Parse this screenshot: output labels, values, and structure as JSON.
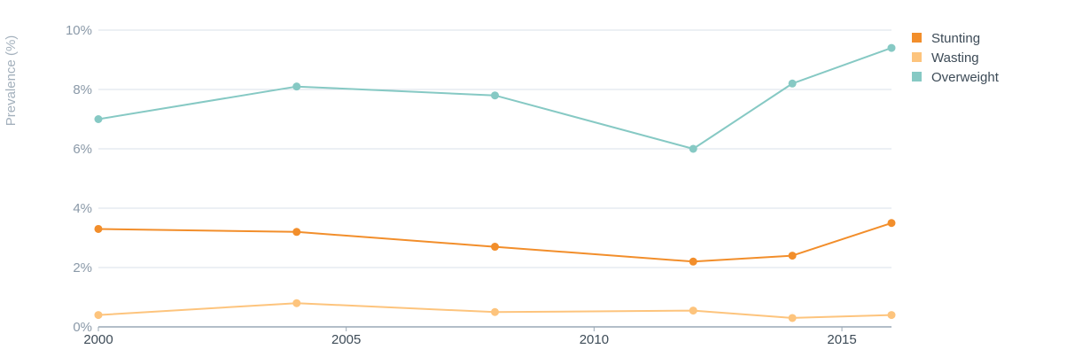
{
  "chart_data": {
    "type": "line",
    "ylabel": "Prevalence (%)",
    "xlabel": "",
    "xlim": [
      2000,
      2016
    ],
    "ylim": [
      0,
      10
    ],
    "x_ticks": [
      2000,
      2005,
      2010,
      2015
    ],
    "x_tick_labels": [
      "2000",
      "2005",
      "2010",
      "2015"
    ],
    "y_ticks": [
      0,
      2,
      4,
      6,
      8,
      10
    ],
    "y_tick_labels": [
      "0%",
      "2%",
      "4%",
      "6%",
      "8%",
      "10%"
    ],
    "grid": true,
    "legend_position": "top-right",
    "x": [
      2000,
      2004,
      2008,
      2012,
      2014,
      2016
    ],
    "series": [
      {
        "name": "Stunting",
        "color": "#f28e2b",
        "values": [
          3.3,
          3.2,
          2.7,
          2.2,
          2.4,
          3.5
        ]
      },
      {
        "name": "Wasting",
        "color": "#fdc47d",
        "values": [
          0.4,
          0.8,
          0.5,
          0.55,
          0.3,
          0.4
        ]
      },
      {
        "name": "Overweight",
        "color": "#86c9c4",
        "values": [
          7.0,
          8.1,
          7.8,
          6.0,
          8.2,
          9.4
        ]
      }
    ]
  }
}
